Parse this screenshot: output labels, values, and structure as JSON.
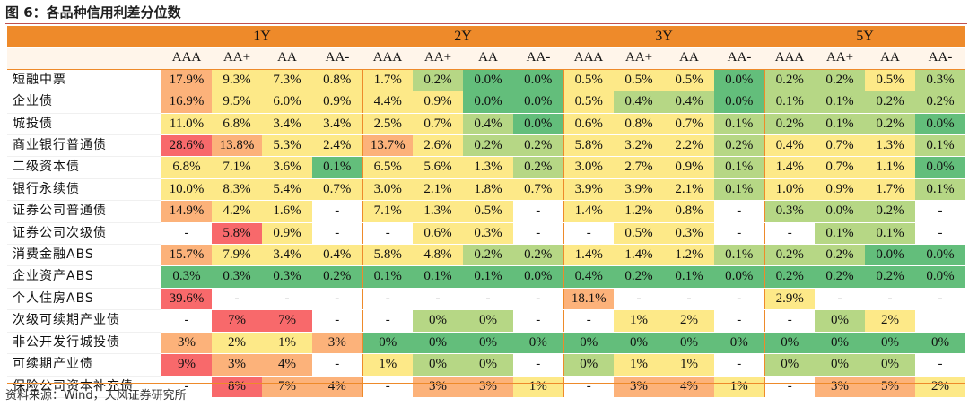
{
  "title": "图 6：各品种信用利差分位数",
  "source": "资料来源：Wind，天风证券研究所",
  "colors": {
    "header_orange": "#ee8a2a",
    "red": "#f8696b",
    "orange": "#fcb27a",
    "yellow": "#fde988",
    "lightgreen": "#b6d785",
    "green": "#63be7b"
  },
  "tenors": [
    "1Y",
    "2Y",
    "3Y",
    "5Y"
  ],
  "ratings": [
    "AAA",
    "AA+",
    "AA",
    "AA-"
  ],
  "rows": [
    {
      "name": "短融中票",
      "values": [
        "17.9%",
        "9.3%",
        "7.3%",
        "0.8%",
        "1.7%",
        "0.2%",
        "0.0%",
        "0.0%",
        "0.5%",
        "0.5%",
        "0.5%",
        "0.0%",
        "0.2%",
        "0.2%",
        "0.5%",
        "0.3%"
      ]
    },
    {
      "name": "企业债",
      "values": [
        "16.9%",
        "9.5%",
        "6.0%",
        "0.9%",
        "4.4%",
        "0.9%",
        "0.0%",
        "0.0%",
        "0.5%",
        "0.4%",
        "0.4%",
        "0.0%",
        "0.1%",
        "0.1%",
        "0.2%",
        "0.2%"
      ]
    },
    {
      "name": "城投债",
      "values": [
        "11.0%",
        "6.8%",
        "3.4%",
        "3.4%",
        "2.5%",
        "0.7%",
        "0.4%",
        "0.0%",
        "0.6%",
        "0.8%",
        "0.7%",
        "0.1%",
        "0.2%",
        "0.1%",
        "0.2%",
        "0.0%"
      ]
    },
    {
      "name": "商业银行普通债",
      "values": [
        "28.6%",
        "13.8%",
        "5.3%",
        "2.4%",
        "13.7%",
        "2.6%",
        "0.2%",
        "0.2%",
        "5.8%",
        "3.2%",
        "2.2%",
        "0.2%",
        "0.4%",
        "0.7%",
        "1.3%",
        "0.1%"
      ]
    },
    {
      "name": "二级资本债",
      "values": [
        "6.8%",
        "7.1%",
        "3.6%",
        "0.1%",
        "6.5%",
        "5.6%",
        "1.3%",
        "0.2%",
        "3.0%",
        "2.7%",
        "0.9%",
        "0.1%",
        "1.4%",
        "0.7%",
        "1.1%",
        "0.0%"
      ]
    },
    {
      "name": "银行永续债",
      "values": [
        "10.0%",
        "8.3%",
        "5.4%",
        "0.7%",
        "3.0%",
        "2.1%",
        "1.8%",
        "0.7%",
        "3.9%",
        "3.9%",
        "2.1%",
        "0.1%",
        "1.0%",
        "0.9%",
        "1.7%",
        "0.1%"
      ]
    },
    {
      "name": "证券公司普通债",
      "values": [
        "14.9%",
        "4.2%",
        "1.6%",
        "-",
        "7.1%",
        "1.3%",
        "0.5%",
        "-",
        "1.4%",
        "1.2%",
        "0.8%",
        "-",
        "0.3%",
        "0.0%",
        "0.2%",
        "-"
      ]
    },
    {
      "name": "证券公司次级债",
      "values": [
        "-",
        "5.8%",
        "0.9%",
        "-",
        "-",
        "0.6%",
        "0.3%",
        "-",
        "-",
        "0.5%",
        "0.3%",
        "-",
        "-",
        "0.1%",
        "0.1%",
        "-"
      ]
    },
    {
      "name": "消费金融ABS",
      "values": [
        "15.7%",
        "7.9%",
        "3.4%",
        "0.4%",
        "5.8%",
        "4.8%",
        "0.2%",
        "0.2%",
        "1.4%",
        "1.4%",
        "1.2%",
        "0.1%",
        "0.2%",
        "0.2%",
        "0.0%",
        "0.0%"
      ]
    },
    {
      "name": "企业资产ABS",
      "values": [
        "0.3%",
        "0.3%",
        "0.3%",
        "0.2%",
        "0.1%",
        "0.1%",
        "0.1%",
        "0.0%",
        "0.4%",
        "0.2%",
        "0.1%",
        "0.0%",
        "0.2%",
        "0.2%",
        "0.2%",
        "0.0%"
      ]
    },
    {
      "name": "个人住房ABS",
      "values": [
        "39.6%",
        "-",
        "-",
        "-",
        "-",
        "-",
        "-",
        "-",
        "18.1%",
        "-",
        "-",
        "-",
        "2.9%",
        "-",
        "-",
        "-"
      ]
    },
    {
      "name": "次级可续期产业债",
      "values": [
        "-",
        "7%",
        "7%",
        "-",
        "-",
        "0%",
        "0%",
        "-",
        "-",
        "1%",
        "2%",
        "-",
        "-",
        "0%",
        "2%",
        ""
      ]
    },
    {
      "name": "非公开发行城投债",
      "values": [
        "3%",
        "2%",
        "1%",
        "3%",
        "0%",
        "0%",
        "0%",
        "0%",
        "0%",
        "0%",
        "0%",
        "0%",
        "0%",
        "0%",
        "0%",
        "0%"
      ]
    },
    {
      "name": "可续期产业债",
      "values": [
        "9%",
        "3%",
        "4%",
        "-",
        "1%",
        "0%",
        "0%",
        "-",
        "0%",
        "1%",
        "1%",
        "-",
        "0%",
        "0%",
        "0%",
        "-"
      ]
    },
    {
      "name": "保险公司资本补充债",
      "values": [
        "-",
        "8%",
        "7%",
        "4%",
        "-",
        "3%",
        "3%",
        "1%",
        "-",
        "3%",
        "4%",
        "1%",
        "-",
        "3%",
        "5%",
        "2%"
      ]
    }
  ],
  "cell_colors": [
    [
      "orange",
      "yellow",
      "yellow",
      "yellow",
      "yellow",
      "lightgreen",
      "green",
      "green",
      "yellow",
      "yellow",
      "yellow",
      "green",
      "lightgreen",
      "lightgreen",
      "yellow",
      "lightgreen"
    ],
    [
      "orange",
      "yellow",
      "yellow",
      "yellow",
      "yellow",
      "yellow",
      "green",
      "green",
      "yellow",
      "lightgreen",
      "lightgreen",
      "green",
      "lightgreen",
      "lightgreen",
      "lightgreen",
      "lightgreen"
    ],
    [
      "yellow",
      "yellow",
      "yellow",
      "yellow",
      "yellow",
      "yellow",
      "lightgreen",
      "green",
      "yellow",
      "yellow",
      "yellow",
      "lightgreen",
      "lightgreen",
      "lightgreen",
      "lightgreen",
      "green"
    ],
    [
      "red",
      "orange",
      "yellow",
      "yellow",
      "orange",
      "yellow",
      "lightgreen",
      "lightgreen",
      "yellow",
      "yellow",
      "yellow",
      "lightgreen",
      "yellow",
      "yellow",
      "yellow",
      "lightgreen"
    ],
    [
      "yellow",
      "yellow",
      "yellow",
      "green",
      "yellow",
      "yellow",
      "yellow",
      "lightgreen",
      "yellow",
      "yellow",
      "yellow",
      "lightgreen",
      "yellow",
      "yellow",
      "yellow",
      "green"
    ],
    [
      "yellow",
      "yellow",
      "yellow",
      "yellow",
      "yellow",
      "yellow",
      "yellow",
      "yellow",
      "yellow",
      "yellow",
      "yellow",
      "lightgreen",
      "yellow",
      "yellow",
      "yellow",
      "lightgreen"
    ],
    [
      "orange",
      "yellow",
      "yellow",
      "none",
      "yellow",
      "yellow",
      "yellow",
      "none",
      "yellow",
      "yellow",
      "yellow",
      "none",
      "lightgreen",
      "lightgreen",
      "lightgreen",
      "none"
    ],
    [
      "none",
      "red",
      "yellow",
      "none",
      "none",
      "yellow",
      "yellow",
      "none",
      "none",
      "yellow",
      "yellow",
      "none",
      "none",
      "lightgreen",
      "lightgreen",
      "none"
    ],
    [
      "orange",
      "yellow",
      "yellow",
      "yellow",
      "yellow",
      "yellow",
      "lightgreen",
      "lightgreen",
      "yellow",
      "yellow",
      "yellow",
      "lightgreen",
      "lightgreen",
      "lightgreen",
      "green",
      "green"
    ],
    [
      "green",
      "green",
      "green",
      "green",
      "green",
      "green",
      "green",
      "green",
      "green",
      "green",
      "green",
      "green",
      "green",
      "green",
      "green",
      "green"
    ],
    [
      "red",
      "none",
      "none",
      "none",
      "none",
      "none",
      "none",
      "none",
      "orange",
      "none",
      "none",
      "none",
      "yellow",
      "none",
      "none",
      "none"
    ],
    [
      "none",
      "red",
      "red",
      "none",
      "none",
      "lightgreen",
      "lightgreen",
      "none",
      "none",
      "yellow",
      "yellow",
      "none",
      "none",
      "lightgreen",
      "yellow",
      "none"
    ],
    [
      "orange",
      "yellow",
      "yellow",
      "orange",
      "green",
      "green",
      "green",
      "green",
      "green",
      "green",
      "green",
      "green",
      "green",
      "green",
      "green",
      "green"
    ],
    [
      "red",
      "orange",
      "orange",
      "none",
      "yellow",
      "lightgreen",
      "lightgreen",
      "none",
      "lightgreen",
      "yellow",
      "yellow",
      "none",
      "lightgreen",
      "lightgreen",
      "lightgreen",
      "none"
    ],
    [
      "none",
      "red",
      "orange",
      "orange",
      "none",
      "orange",
      "orange",
      "yellow",
      "none",
      "orange",
      "orange",
      "yellow",
      "none",
      "orange",
      "orange",
      "yellow"
    ]
  ]
}
